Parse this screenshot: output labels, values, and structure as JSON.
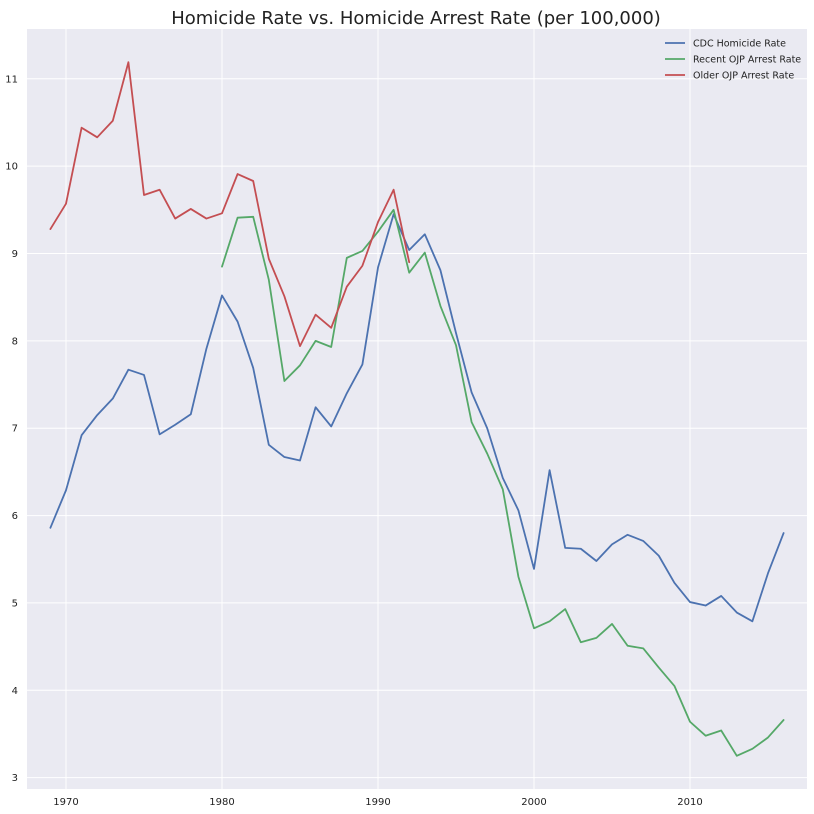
{
  "chart_data": {
    "type": "line",
    "title": "Homicide Rate vs. Homicide Arrest Rate (per 100,000)",
    "xlabel": "",
    "ylabel": "",
    "xlim": [
      1967.5,
      2017.5
    ],
    "ylim": [
      2.87,
      11.57
    ],
    "xticks": [
      1970,
      1980,
      1990,
      2000,
      2010
    ],
    "yticks": [
      3,
      4,
      5,
      6,
      7,
      8,
      9,
      10,
      11
    ],
    "grid": true,
    "background_color": "#EAEAF2",
    "legend_position": "top-right",
    "series": [
      {
        "name": "CDC Homicide Rate",
        "color": "#4C72B0",
        "x": [
          1969,
          1970,
          1971,
          1972,
          1973,
          1974,
          1975,
          1976,
          1977,
          1978,
          1979,
          1980,
          1981,
          1982,
          1983,
          1984,
          1985,
          1986,
          1987,
          1988,
          1989,
          1990,
          1991,
          1992,
          1993,
          1994,
          1995,
          1996,
          1997,
          1998,
          1999,
          2000,
          2001,
          2002,
          2003,
          2004,
          2005,
          2006,
          2007,
          2008,
          2009,
          2010,
          2011,
          2012,
          2013,
          2014,
          2015,
          2016
        ],
        "y": [
          5.86,
          6.29,
          6.92,
          7.15,
          7.34,
          7.67,
          7.61,
          6.93,
          7.04,
          7.16,
          7.91,
          8.52,
          8.22,
          7.69,
          6.81,
          6.67,
          6.63,
          7.24,
          7.02,
          7.4,
          7.73,
          8.84,
          9.45,
          9.04,
          9.22,
          8.81,
          8.09,
          7.41,
          7.0,
          6.43,
          6.06,
          5.39,
          6.52,
          5.63,
          5.62,
          5.48,
          5.67,
          5.78,
          5.71,
          5.54,
          5.23,
          5.01,
          4.97,
          5.08,
          4.89,
          4.79,
          5.34,
          5.8
        ]
      },
      {
        "name": "Recent OJP Arrest Rate",
        "color": "#55A868",
        "x": [
          1980,
          1981,
          1982,
          1983,
          1984,
          1985,
          1986,
          1987,
          1988,
          1989,
          1990,
          1991,
          1992,
          1993,
          1994,
          1995,
          1996,
          1997,
          1998,
          1999,
          2000,
          2001,
          2002,
          2003,
          2004,
          2005,
          2006,
          2007,
          2008,
          2009,
          2010,
          2011,
          2012,
          2013,
          2014,
          2015,
          2016
        ],
        "y": [
          8.85,
          9.41,
          9.42,
          8.7,
          7.54,
          7.72,
          8.0,
          7.93,
          8.95,
          9.03,
          9.25,
          9.5,
          8.78,
          9.01,
          8.4,
          7.95,
          7.07,
          6.71,
          6.3,
          5.3,
          4.71,
          4.79,
          4.93,
          4.55,
          4.6,
          4.76,
          4.51,
          4.48,
          4.26,
          4.05,
          3.64,
          3.48,
          3.54,
          3.25,
          3.33,
          3.46,
          3.66
        ]
      },
      {
        "name": "Older OJP Arrest Rate",
        "color": "#C44E52",
        "x": [
          1969,
          1970,
          1971,
          1972,
          1973,
          1974,
          1975,
          1976,
          1977,
          1978,
          1979,
          1980,
          1981,
          1982,
          1983,
          1984,
          1985,
          1986,
          1987,
          1988,
          1989,
          1990,
          1991,
          1992
        ],
        "y": [
          9.28,
          9.57,
          10.44,
          10.33,
          10.52,
          11.19,
          9.67,
          9.73,
          9.4,
          9.51,
          9.4,
          9.46,
          9.91,
          9.83,
          8.94,
          8.51,
          7.94,
          8.3,
          8.15,
          8.62,
          8.86,
          9.36,
          9.73,
          8.9
        ]
      }
    ]
  }
}
